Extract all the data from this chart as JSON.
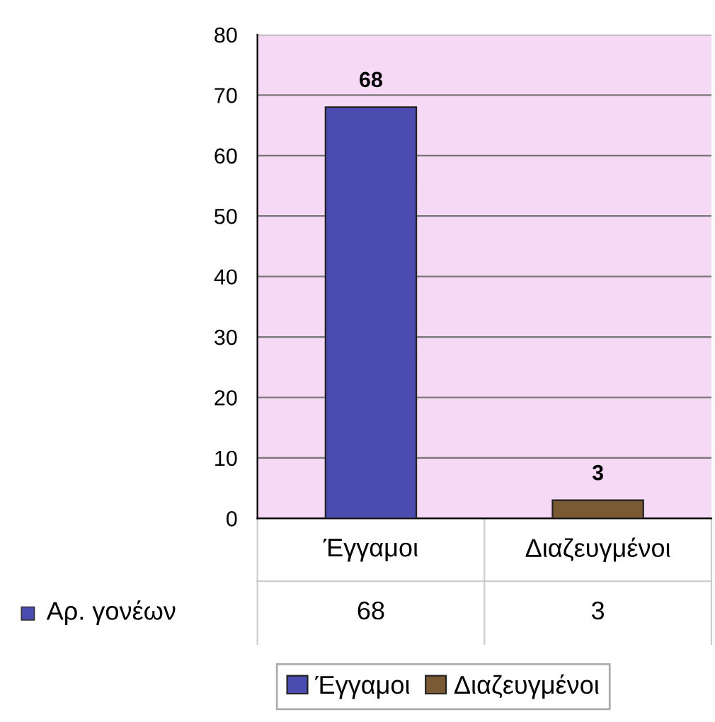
{
  "chart_data": {
    "type": "bar",
    "categories": [
      "Έγγαμοι",
      "Διαζευγμένοι"
    ],
    "series": [
      {
        "name": "Αρ. γονέων",
        "colors": [
          "#4b4bb0",
          "#7a5a35"
        ],
        "values": [
          68,
          3
        ],
        "value_labels": [
          "68",
          "3"
        ]
      }
    ],
    "ylim": [
      0,
      80
    ],
    "yticks": [
      0,
      10,
      20,
      30,
      40,
      50,
      60,
      70,
      80
    ],
    "grid": "y",
    "data_labels": true,
    "legend": "bottom",
    "annotations": [
      {
        "text": "68",
        "x": "Έγγαμοι",
        "y": 68
      },
      {
        "text": "3",
        "x": "Διαζευγμένοι",
        "y": 3
      }
    ]
  }
}
